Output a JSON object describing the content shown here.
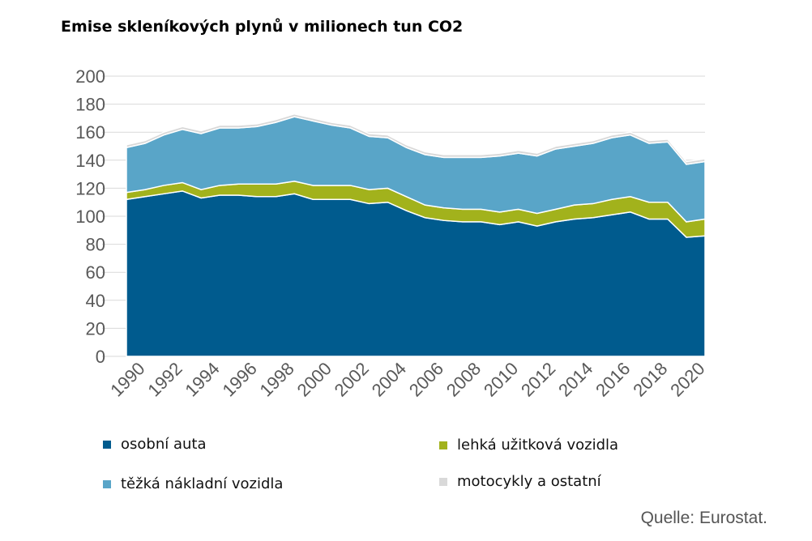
{
  "chart_data": {
    "type": "area",
    "stacked": true,
    "title": "Emise skleníkových plynů v milionech tun CO2",
    "xlabel": "",
    "ylabel": "",
    "ylim": [
      0,
      200
    ],
    "yticks": [
      0,
      20,
      40,
      60,
      80,
      100,
      120,
      140,
      160,
      180,
      200
    ],
    "xticks": [
      "1990",
      "1992",
      "1994",
      "1996",
      "1998",
      "2000",
      "2002",
      "2004",
      "2006",
      "2008",
      "2010",
      "2012",
      "2014",
      "2016",
      "2018",
      "2020"
    ],
    "grid": true,
    "legend_placement": "bottom",
    "x": [
      1990,
      1991,
      1992,
      1993,
      1994,
      1995,
      1996,
      1997,
      1998,
      1999,
      2000,
      2001,
      2002,
      2003,
      2004,
      2005,
      2006,
      2007,
      2008,
      2009,
      2010,
      2011,
      2012,
      2013,
      2014,
      2015,
      2016,
      2017,
      2018,
      2019,
      2020,
      2021
    ],
    "series": [
      {
        "name": "osobní auta",
        "color": "#005b8e",
        "values": [
          112,
          114,
          116,
          118,
          113,
          115,
          115,
          114,
          114,
          116,
          112,
          112,
          112,
          109,
          110,
          104,
          99,
          97,
          96,
          96,
          94,
          96,
          93,
          96,
          98,
          99,
          101,
          103,
          98,
          98,
          85,
          86
        ]
      },
      {
        "name": "lehká užitková vozidla",
        "color": "#a2b21c",
        "values": [
          5,
          5,
          6,
          6,
          6,
          7,
          8,
          9,
          9,
          9,
          10,
          10,
          10,
          10,
          10,
          10,
          9,
          9,
          9,
          9,
          9,
          9,
          9,
          9,
          10,
          10,
          11,
          11,
          12,
          12,
          11,
          12
        ]
      },
      {
        "name": "těžká nákladní vozidla",
        "color": "#59a5c8",
        "values": [
          32,
          33,
          36,
          38,
          40,
          41,
          40,
          41,
          44,
          46,
          46,
          43,
          41,
          38,
          36,
          35,
          36,
          36,
          37,
          37,
          40,
          40,
          41,
          43,
          42,
          43,
          44,
          44,
          42,
          43,
          41,
          41
        ]
      },
      {
        "name": "motocykly a ostatní",
        "color": "#d9d9d9",
        "values": [
          2,
          2,
          2,
          2,
          2,
          2,
          2,
          2,
          2,
          2,
          2,
          2,
          2,
          2,
          2,
          2,
          2,
          2,
          2,
          2,
          2,
          2,
          2,
          2,
          2,
          2,
          2,
          2,
          2,
          2,
          2,
          2
        ]
      }
    ]
  },
  "legend": {
    "cars": "osobní auta",
    "lcv": "lehká užitková vozidla",
    "hgv": "těžká nákladní vozidla",
    "moto": "motocykly a ostatní"
  },
  "source": "Quelle: Eurostat."
}
